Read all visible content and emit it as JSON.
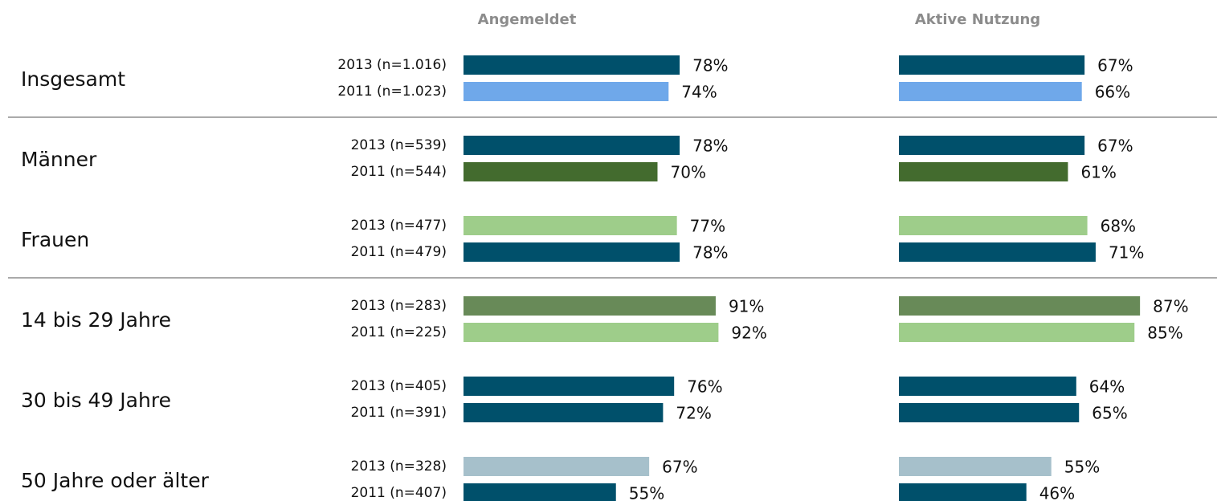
{
  "chart_data": {
    "type": "bar",
    "groups": [
      "Insgesamt",
      "Männer",
      "Frauen",
      "14 bis 29 Jahre",
      "30 bis 49 Jahre",
      "50 Jahre oder älter"
    ],
    "categories": [
      "2013 (n=1.016)",
      "2011 (n=1.023)",
      "2013 (n=539)",
      "2011 (n=544)",
      "2013 (n=477)",
      "2011 (n=479)",
      "2013 (n=283)",
      "2011 (n=225)",
      "2013 (n=405)",
      "2011 (n=391)",
      "2013 (n=328)",
      "2011 (n=407)"
    ],
    "colors": [
      "#00506b",
      "#6fa8ea",
      "#00506b",
      "#436b2e",
      "#9ecd8a",
      "#00506b",
      "#688a58",
      "#9ecd8a",
      "#00506b",
      "#00506b",
      "#a6c0cb",
      "#00506b"
    ],
    "series": [
      {
        "name": "Angemeldet",
        "values": [
          78,
          74,
          78,
          70,
          77,
          78,
          91,
          92,
          76,
          72,
          67,
          55
        ],
        "value_labels": [
          "78%",
          "74%",
          "78%",
          "70%",
          "77%",
          "78%",
          "91%",
          "92%",
          "76%",
          "72%",
          "67%",
          "55%"
        ]
      },
      {
        "name": "Aktive Nutzung",
        "values": [
          67,
          66,
          67,
          61,
          68,
          71,
          87,
          85,
          64,
          65,
          55,
          46
        ],
        "value_labels": [
          "67%",
          "66%",
          "67%",
          "61%",
          "68%",
          "71%",
          "87%",
          "85%",
          "64%",
          "65%",
          "55%",
          "46%"
        ]
      }
    ]
  }
}
